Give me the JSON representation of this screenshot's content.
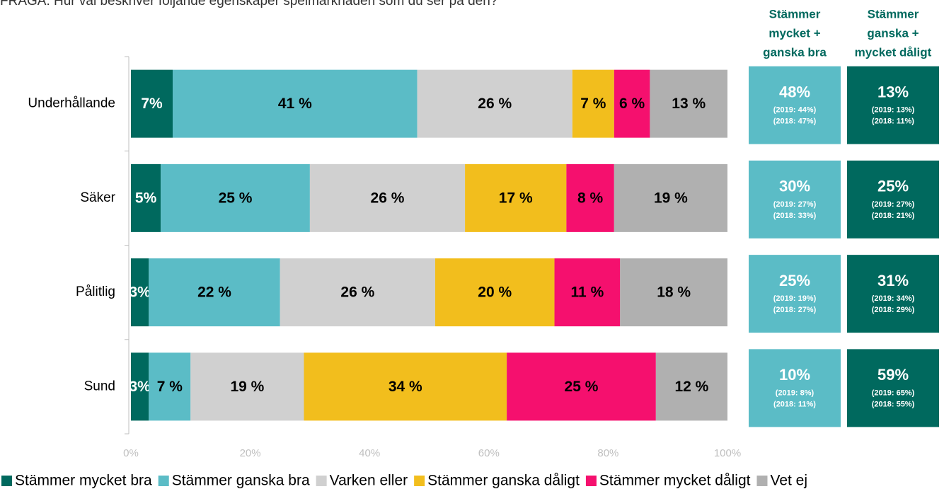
{
  "chart_data": {
    "type": "stacked-barh",
    "title": "FRÅGA: Hur väl beskriver följande egenskaper spelmarknaden som du ser på den?",
    "categories": [
      "Underhållande",
      "Säker",
      "Pålitlig",
      "Sund"
    ],
    "series": [
      {
        "name": "Stämmer mycket bra",
        "color": "#00695e",
        "values": [
          7,
          5,
          3,
          3
        ],
        "value_labels": [
          "7%",
          "5%",
          "3%",
          "3%"
        ]
      },
      {
        "name": "Stämmer ganska bra",
        "color": "#5bbcc6",
        "values": [
          41,
          25,
          22,
          7
        ],
        "value_labels": [
          "41 %",
          "25 %",
          "22 %",
          "7 %"
        ]
      },
      {
        "name": "Varken eller",
        "color": "#d0d0d0",
        "values": [
          26,
          26,
          26,
          19
        ],
        "value_labels": [
          "26 %",
          "26 %",
          "26 %",
          "19 %"
        ]
      },
      {
        "name": "Stämmer ganska dåligt",
        "color": "#f2be1d",
        "values": [
          7,
          17,
          20,
          34
        ],
        "value_labels": [
          "7 %",
          "17 %",
          "20 %",
          "34 %"
        ]
      },
      {
        "name": "Stämmer mycket dåligt",
        "color": "#f5106e",
        "values": [
          6,
          8,
          11,
          25
        ],
        "value_labels": [
          "6 %",
          "8 %",
          "11 %",
          "25 %"
        ]
      },
      {
        "name": "Vet ej",
        "color": "#b0b0b0",
        "values": [
          13,
          19,
          18,
          12
        ],
        "value_labels": [
          "13 %",
          "19 %",
          "18 %",
          "12 %"
        ]
      }
    ],
    "xlim": [
      0,
      100
    ],
    "xticks": [
      {
        "value": 0,
        "label": "0%"
      },
      {
        "value": 20,
        "label": "20%"
      },
      {
        "value": 40,
        "label": "40%"
      },
      {
        "value": 60,
        "label": "60%"
      },
      {
        "value": 80,
        "label": "80%"
      },
      {
        "value": 100,
        "label": "100%"
      }
    ],
    "legend": "bottom",
    "summary": [
      {
        "header": [
          "Stämmer",
          "mycket +",
          "ganska bra"
        ],
        "color": "#5bbcc6",
        "cells": [
          [
            "48%",
            "(2019: 44%)",
            "(2018: 47%)"
          ],
          [
            "30%",
            "(2019: 27%)",
            "(2018: 33%)"
          ],
          [
            "25%",
            "(2019: 19%)",
            "(2018: 27%)"
          ],
          [
            "10%",
            "(2019: 8%)",
            "(2018: 11%)"
          ]
        ]
      },
      {
        "header": [
          "Stämmer",
          "ganska +",
          "mycket dåligt"
        ],
        "color": "#00695e",
        "cells": [
          [
            "13%",
            "(2019: 13%)",
            "(2018: 11%)"
          ],
          [
            "25%",
            "(2019: 27%)",
            "(2018: 21%)"
          ],
          [
            "31%",
            "(2019: 34%)",
            "(2018: 29%)"
          ],
          [
            "59%",
            "(2019: 65%)",
            "(2018: 55%)"
          ]
        ]
      }
    ]
  }
}
